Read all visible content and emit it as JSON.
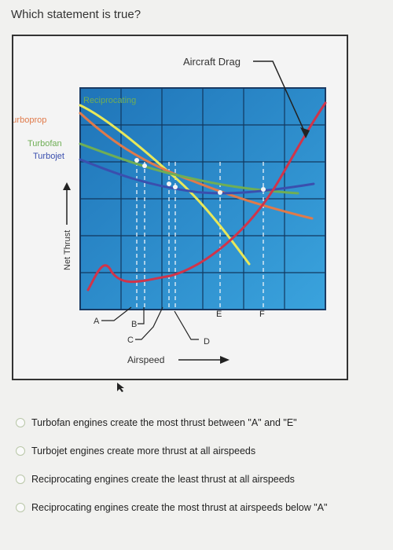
{
  "question": "Which statement is true?",
  "chart_data": {
    "type": "line",
    "xlabel": "Airspeed",
    "ylabel": "Net Thrust",
    "airspeed_markers": [
      "A",
      "B",
      "C",
      "D",
      "E",
      "F"
    ],
    "callout": "Aircraft Drag",
    "series": [
      {
        "name": "Reciprocating",
        "color": "#e8e85a"
      },
      {
        "name": "Turboprop",
        "color": "#e07a4a"
      },
      {
        "name": "Turbofan",
        "color": "#6fae55"
      },
      {
        "name": "Turbojet",
        "color": "#3a4fae"
      },
      {
        "name": "Aircraft Drag",
        "color": "#d0344a"
      }
    ]
  },
  "answers": [
    "Turbofan engines create the most thrust between \"A\" and \"E\"",
    "Turbojet engines create more thrust at all airspeeds",
    "Reciprocating engines create the least thrust at all airspeeds",
    "Reciprocating engines create the most thrust at airspeeds below \"A\""
  ]
}
